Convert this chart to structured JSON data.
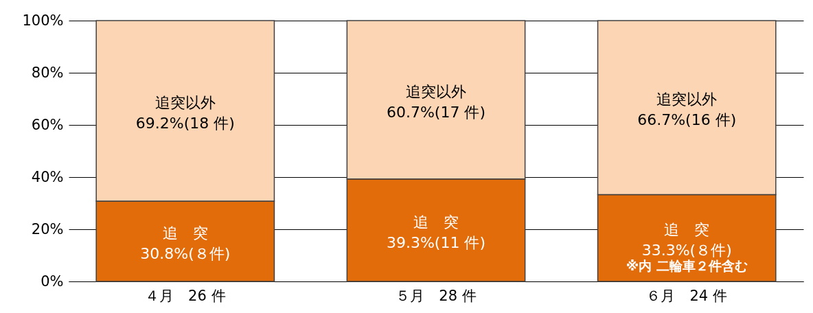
{
  "chart_data": {
    "type": "bar",
    "stacked": true,
    "categories": [
      "４月　26 件",
      "５月　28 件",
      "６月　24 件"
    ],
    "series": [
      {
        "name": "追　突",
        "color": "#e26b0a",
        "values": [
          30.8,
          39.3,
          33.3
        ],
        "value_labels": [
          "30.8%(８件)",
          "39.3%(11 件)",
          "33.3%(８件)"
        ]
      },
      {
        "name": "追突以外",
        "color": "#fcd5b5",
        "values": [
          69.2,
          60.7,
          66.7
        ],
        "value_labels": [
          "69.2%(18 件)",
          "60.7%(17 件)",
          "66.7%(16 件)"
        ]
      }
    ],
    "ylim": [
      0,
      100
    ],
    "yticks": [
      {
        "value": 0,
        "label": "0%"
      },
      {
        "value": 20,
        "label": "20%"
      },
      {
        "value": 40,
        "label": "40%"
      },
      {
        "value": 60,
        "label": "60%"
      },
      {
        "value": 80,
        "label": "80%"
      },
      {
        "value": 100,
        "label": "100%"
      }
    ],
    "grid": "y",
    "legend": false,
    "annotations": [
      "※内 二輪車２件含む"
    ]
  }
}
